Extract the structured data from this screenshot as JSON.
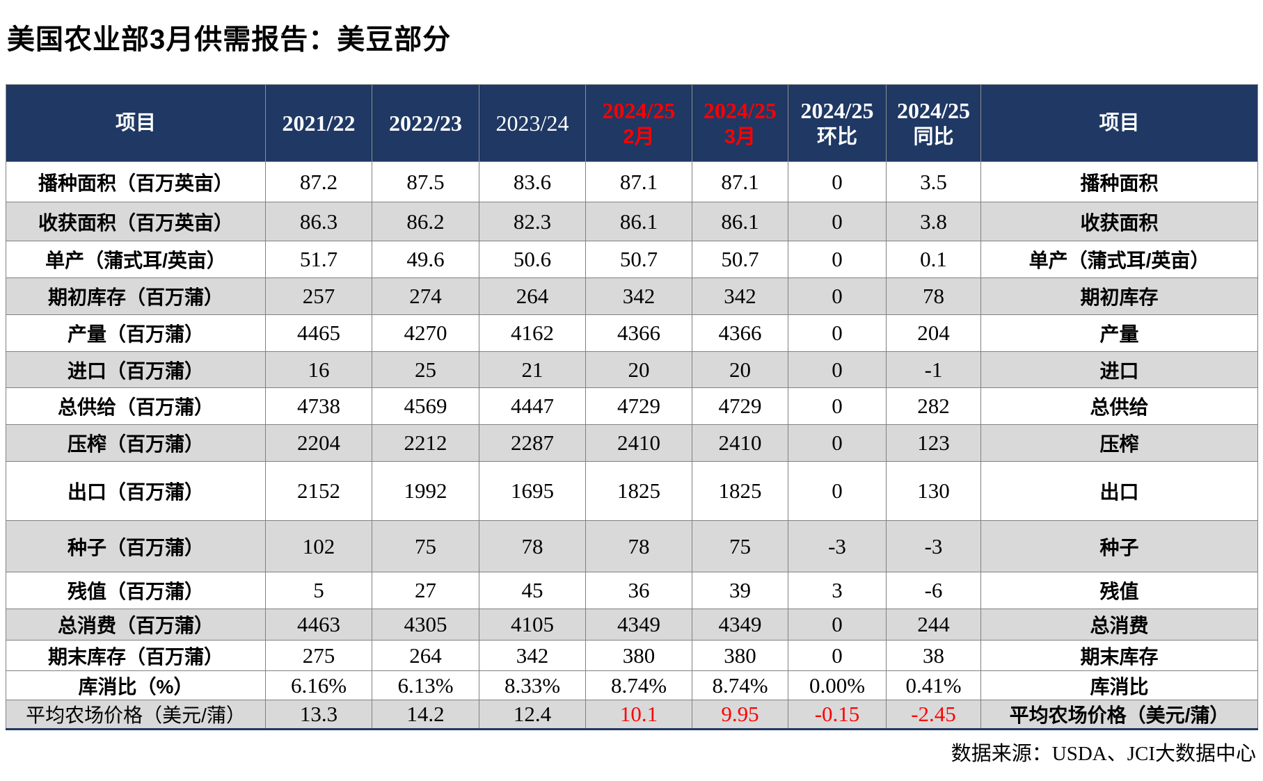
{
  "title": "美国农业部3月供需报告：美豆部分",
  "source_note": "数据来源：USDA、JCI大数据中心",
  "colors": {
    "header_bg": "#1F3864",
    "highlight_red": "#FF0000",
    "shaded_row": "#D9D9D9",
    "grid_line": "#808080"
  },
  "table": {
    "columns": [
      {
        "line1": "项目",
        "cjk": true,
        "red": false
      },
      {
        "line1": "2021/22",
        "cjk": false,
        "red": false
      },
      {
        "line1": "2022/23",
        "cjk": false,
        "red": false
      },
      {
        "line1": "2023/24",
        "cjk": false,
        "red": false
      },
      {
        "line1": "2024/25",
        "line2": "2月",
        "cjk": false,
        "red": true
      },
      {
        "line1": "2024/25",
        "line2": "3月",
        "cjk": false,
        "red": true
      },
      {
        "line1": "2024/25",
        "line2": "环比",
        "cjk": false,
        "red": false
      },
      {
        "line1": "2024/25",
        "line2": "同比",
        "cjk": false,
        "red": false
      },
      {
        "line1": "项目",
        "cjk": true,
        "red": false
      }
    ],
    "rows": [
      {
        "label": "播种面积（百万英亩）",
        "values": [
          "87.2",
          "87.5",
          "83.6",
          "87.1",
          "87.1",
          "0",
          "3.5"
        ],
        "label_right": "播种面积",
        "shaded": false
      },
      {
        "label": "收获面积（百万英亩）",
        "values": [
          "86.3",
          "86.2",
          "82.3",
          "86.1",
          "86.1",
          "0",
          "3.8"
        ],
        "label_right": "收获面积",
        "shaded": true
      },
      {
        "label": "单产（蒲式耳/英亩）",
        "values": [
          "51.7",
          "49.6",
          "50.6",
          "50.7",
          "50.7",
          "0",
          "0.1"
        ],
        "label_right": "单产（蒲式耳/英亩）",
        "shaded": false
      },
      {
        "label": "期初库存（百万蒲）",
        "values": [
          "257",
          "274",
          "264",
          "342",
          "342",
          "0",
          "78"
        ],
        "label_right": "期初库存",
        "shaded": true
      },
      {
        "label": "产量（百万蒲）",
        "values": [
          "4465",
          "4270",
          "4162",
          "4366",
          "4366",
          "0",
          "204"
        ],
        "label_right": "产量",
        "shaded": false
      },
      {
        "label": "进口（百万蒲）",
        "values": [
          "16",
          "25",
          "21",
          "20",
          "20",
          "0",
          "-1"
        ],
        "label_right": "进口",
        "shaded": true
      },
      {
        "label": "总供给（百万蒲）",
        "values": [
          "4738",
          "4569",
          "4447",
          "4729",
          "4729",
          "0",
          "282"
        ],
        "label_right": "总供给",
        "shaded": false
      },
      {
        "label": "压榨（百万蒲）",
        "values": [
          "2204",
          "2212",
          "2287",
          "2410",
          "2410",
          "0",
          "123"
        ],
        "label_right": "压榨",
        "shaded": true
      },
      {
        "label": "出口（百万蒲）",
        "values": [
          "2152",
          "1992",
          "1695",
          "1825",
          "1825",
          "0",
          "130"
        ],
        "label_right": "出口",
        "shaded": false
      },
      {
        "label": "种子（百万蒲）",
        "values": [
          "102",
          "75",
          "78",
          "78",
          "75",
          "-3",
          "-3"
        ],
        "label_right": "种子",
        "shaded": true
      },
      {
        "label": "残值（百万蒲）",
        "values": [
          "5",
          "27",
          "45",
          "36",
          "39",
          "3",
          "-6"
        ],
        "label_right": "残值",
        "shaded": false
      },
      {
        "label": "总消费（百万蒲）",
        "values": [
          "4463",
          "4305",
          "4105",
          "4349",
          "4349",
          "0",
          "244"
        ],
        "label_right": "总消费",
        "shaded": true
      },
      {
        "label": "期末库存（百万蒲）",
        "values": [
          "275",
          "264",
          "342",
          "380",
          "380",
          "0",
          "38"
        ],
        "label_right": "期末库存",
        "shaded": false
      },
      {
        "label": "库消比（%）",
        "values": [
          "6.16%",
          "6.13%",
          "8.33%",
          "8.74%",
          "8.74%",
          "0.00%",
          "0.41%"
        ],
        "label_right": "库消比",
        "shaded": false
      },
      {
        "label": "平均农场价格（美元/蒲）",
        "values": [
          "13.3",
          "14.2",
          "12.4",
          "10.1",
          "9.95",
          "-0.15",
          "-2.45"
        ],
        "label_right": "平均农场价格（美元/蒲）",
        "shaded": true,
        "highlight_values": true,
        "label_left_bold": false
      }
    ]
  },
  "chart_data": {
    "type": "table",
    "title": "美国农业部3月供需报告：美豆部分",
    "columns": [
      "项目",
      "2021/22",
      "2022/23",
      "2023/24",
      "2024/25 2月",
      "2024/25 3月",
      "2024/25 环比",
      "2024/25 同比",
      "项目"
    ],
    "rows": [
      [
        "播种面积（百万英亩）",
        "87.2",
        "87.5",
        "83.6",
        "87.1",
        "87.1",
        "0",
        "3.5",
        "播种面积"
      ],
      [
        "收获面积（百万英亩）",
        "86.3",
        "86.2",
        "82.3",
        "86.1",
        "86.1",
        "0",
        "3.8",
        "收获面积"
      ],
      [
        "单产（蒲式耳/英亩）",
        "51.7",
        "49.6",
        "50.6",
        "50.7",
        "50.7",
        "0",
        "0.1",
        "单产（蒲式耳/英亩）"
      ],
      [
        "期初库存（百万蒲）",
        "257",
        "274",
        "264",
        "342",
        "342",
        "0",
        "78",
        "期初库存"
      ],
      [
        "产量（百万蒲）",
        "4465",
        "4270",
        "4162",
        "4366",
        "4366",
        "0",
        "204",
        "产量"
      ],
      [
        "进口（百万蒲）",
        "16",
        "25",
        "21",
        "20",
        "20",
        "0",
        "-1",
        "进口"
      ],
      [
        "总供给（百万蒲）",
        "4738",
        "4569",
        "4447",
        "4729",
        "4729",
        "0",
        "282",
        "总供给"
      ],
      [
        "压榨（百万蒲）",
        "2204",
        "2212",
        "2287",
        "2410",
        "2410",
        "0",
        "123",
        "压榨"
      ],
      [
        "出口（百万蒲）",
        "2152",
        "1992",
        "1695",
        "1825",
        "1825",
        "0",
        "130",
        "出口"
      ],
      [
        "种子（百万蒲）",
        "102",
        "75",
        "78",
        "78",
        "75",
        "-3",
        "-3",
        "种子"
      ],
      [
        "残值（百万蒲）",
        "5",
        "27",
        "45",
        "36",
        "39",
        "3",
        "-6",
        "残值"
      ],
      [
        "总消费（百万蒲）",
        "4463",
        "4305",
        "4105",
        "4349",
        "4349",
        "0",
        "244",
        "总消费"
      ],
      [
        "期末库存（百万蒲）",
        "275",
        "264",
        "342",
        "380",
        "380",
        "0",
        "38",
        "期末库存"
      ],
      [
        "库消比（%）",
        "6.16%",
        "6.13%",
        "8.33%",
        "8.74%",
        "8.74%",
        "0.00%",
        "0.41%",
        "库消比"
      ],
      [
        "平均农场价格（美元/蒲）",
        "13.3",
        "14.2",
        "12.4",
        "10.1",
        "9.95",
        "-0.15",
        "-2.45",
        "平均农场价格（美元/蒲）"
      ]
    ],
    "notes": "2024/25 2月、2024/25 3月 header text and last-row month/环比/同比 values shown in red; source: 数据来源：USDA、JCI大数据中心"
  }
}
